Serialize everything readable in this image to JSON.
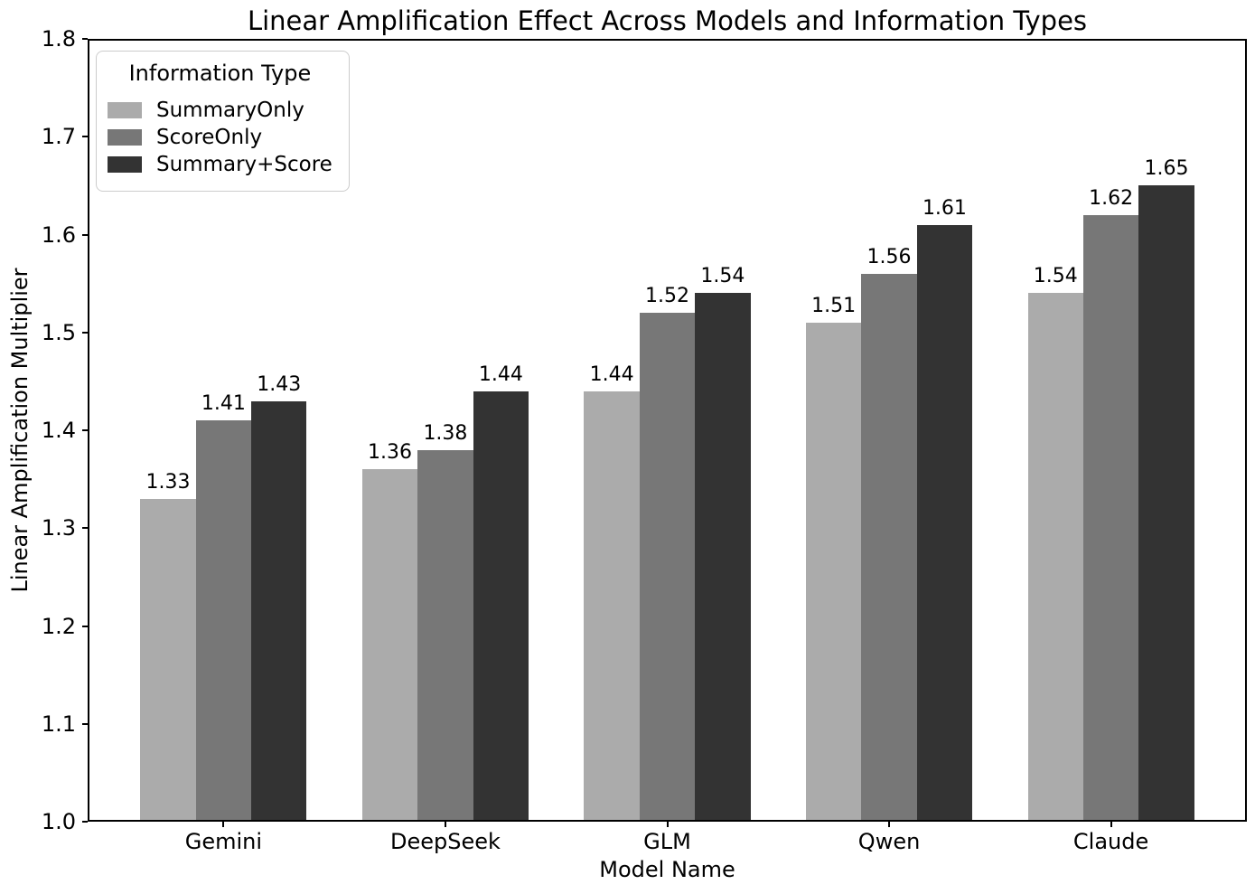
{
  "chart_data": {
    "type": "bar",
    "title": "Linear Amplification Effect Across Models and Information Types",
    "xlabel": "Model Name",
    "ylabel": "Linear Amplification Multiplier",
    "categories": [
      "Gemini",
      "DeepSeek",
      "GLM",
      "Qwen",
      "Claude"
    ],
    "series": [
      {
        "name": "SummaryOnly",
        "color": "#ababab",
        "values": [
          1.33,
          1.36,
          1.44,
          1.51,
          1.54
        ]
      },
      {
        "name": "ScoreOnly",
        "color": "#777777",
        "values": [
          1.41,
          1.38,
          1.52,
          1.56,
          1.62
        ]
      },
      {
        "name": "Summary+Score",
        "color": "#333333",
        "values": [
          1.43,
          1.44,
          1.54,
          1.61,
          1.65
        ]
      }
    ],
    "ylim": [
      1.0,
      1.8
    ],
    "ytick_labels": [
      "1.0",
      "1.1",
      "1.2",
      "1.3",
      "1.4",
      "1.5",
      "1.6",
      "1.7",
      "1.8"
    ],
    "bar_value_labels": true,
    "grid": false,
    "legend": {
      "title": "Information Type",
      "position": "upper left"
    },
    "colors": {
      "background": "#ffffff",
      "text": "#000000",
      "spine": "#000000",
      "legend_border": "#cccccc"
    }
  }
}
